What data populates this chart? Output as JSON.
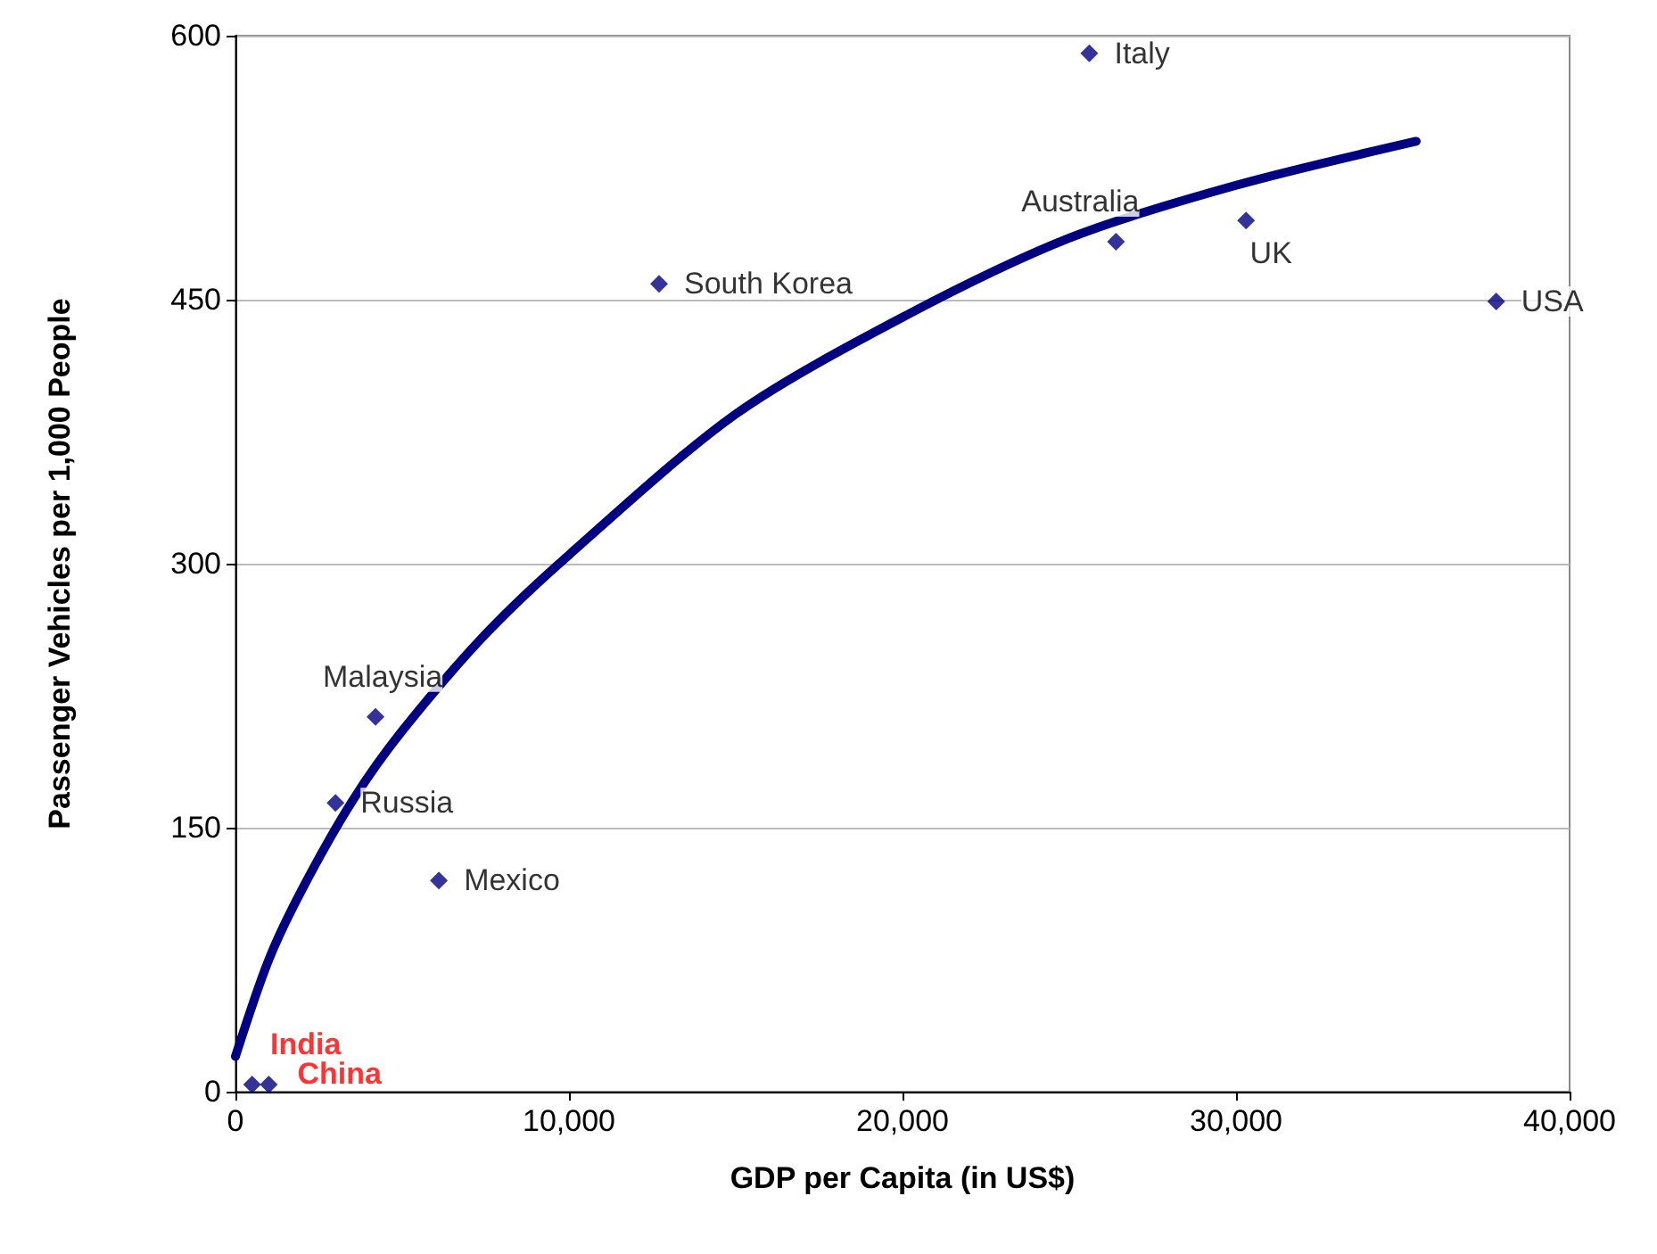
{
  "chart_data": {
    "type": "scatter",
    "xlabel": "GDP per Capita (in US$)",
    "ylabel": "Passenger Vehicles per 1,000 People",
    "xlim": [
      0,
      40000
    ],
    "xticks": [
      {
        "value": 0,
        "label": "0"
      },
      {
        "value": 10000,
        "label": "10,000"
      },
      {
        "value": 20000,
        "label": "20,000"
      },
      {
        "value": 30000,
        "label": "30,000"
      },
      {
        "value": 40000,
        "label": "40,000"
      }
    ],
    "ylim": [
      0,
      600
    ],
    "yticks": [
      0,
      150,
      300,
      450,
      600
    ],
    "grid": "y",
    "marker": "diamond",
    "series": [
      {
        "color": "#000080",
        "x": [
          25600,
          26400,
          30300,
          37800,
          12700,
          4200,
          3000,
          6100
        ],
        "values": [
          590,
          483,
          495,
          449,
          459,
          213,
          164,
          120
        ],
        "value_labels": [
          "Italy",
          "Australia",
          "UK",
          "USA",
          "South Korea",
          "Malaysia",
          "Russia",
          "Mexico"
        ]
      },
      {
        "color": "#000080",
        "x": [
          500,
          1000
        ],
        "values": [
          4,
          4
        ],
        "value_labels": [
          "India",
          "China"
        ]
      },
      {
        "type": "line",
        "marker": "none",
        "color": "#000080",
        "line_style": "solid",
        "x": [
          0,
          1000,
          2000,
          3500,
          5000,
          7500,
          10000,
          15000,
          20000,
          25000,
          30000,
          35400
        ],
        "values": [
          20,
          75,
          115,
          165,
          205,
          260,
          305,
          385,
          440,
          485,
          515,
          540
        ]
      }
    ]
  }
}
